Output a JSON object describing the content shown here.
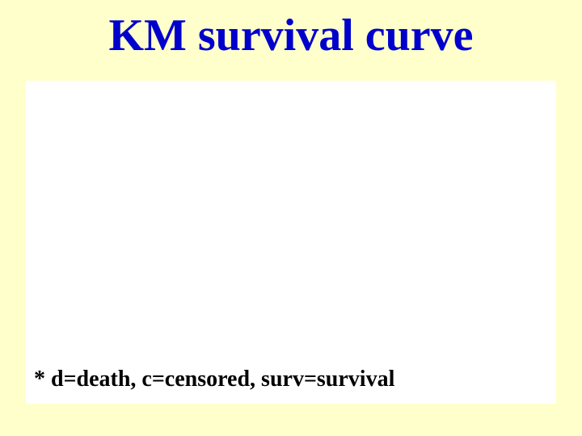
{
  "slide": {
    "title": "KM survival curve",
    "footnote": "* d=death, c=censored, surv=survival",
    "background_color": "#ffffcc",
    "title_color": "#0000cc",
    "title_fontsize": 56,
    "footnote_fontsize": 28,
    "footnote_color": "#000000",
    "content_box_color": "#ffffff"
  }
}
